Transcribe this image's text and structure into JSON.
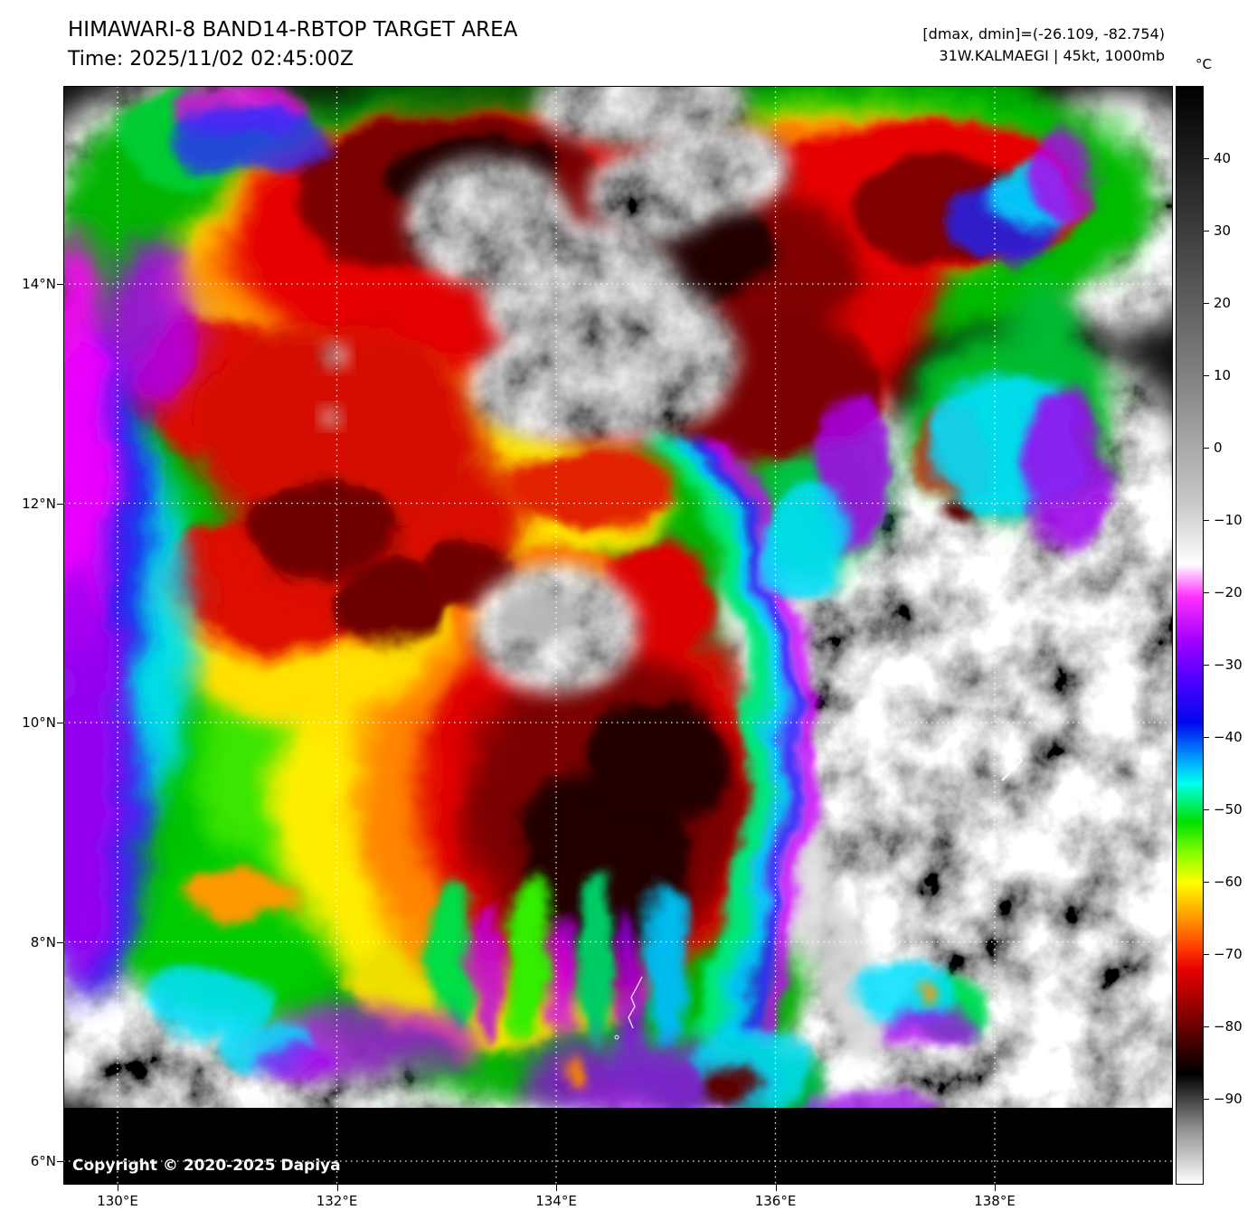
{
  "header": {
    "title": "HIMAWARI-8 BAND14-RBTOP TARGET AREA",
    "time_line": "Time: 2025/11/02 02:45:00Z",
    "dminmax_line": "[dmax, dmin]=(-26.109, -82.754)",
    "storm_line": "31W.KALMAEGI | 45kt, 1000mb"
  },
  "colorbar": {
    "unit": "°C",
    "ticks": [
      "40",
      "30",
      "20",
      "10",
      "0",
      "−10",
      "−20",
      "−30",
      "−40",
      "−50",
      "−60",
      "−70",
      "−80",
      "−90"
    ]
  },
  "map": {
    "lat_labels": [
      "14°N",
      "12°N",
      "10°N",
      "8°N",
      "6°N"
    ],
    "lon_labels": [
      "130°E",
      "132°E",
      "134°E",
      "136°E",
      "138°E"
    ],
    "copyright": "Copyright © 2020-2025 Dapiya"
  }
}
